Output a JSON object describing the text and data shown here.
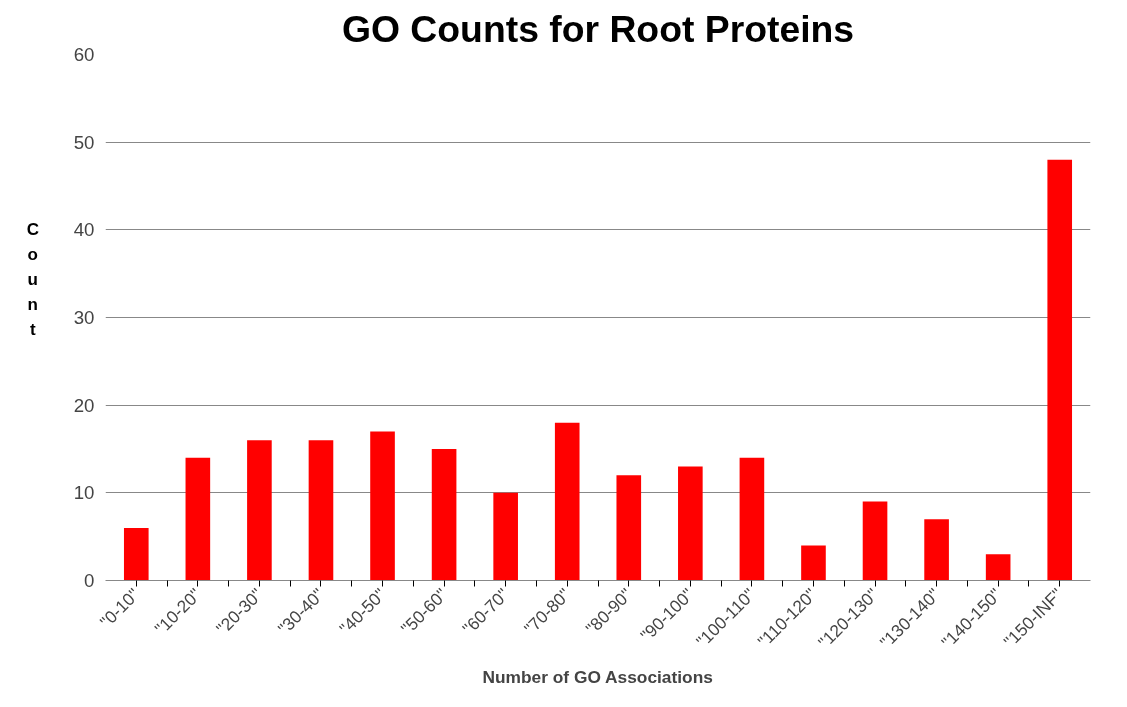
{
  "chart_data": {
    "type": "bar",
    "title": "GO Counts for Root Proteins",
    "xlabel": "Number of GO Associations",
    "ylabel": "Count",
    "categories": [
      "\"0-10\"",
      "\"10-20\"",
      "\"20-30\"",
      "\"30-40\"",
      "\"40-50\"",
      "\"50-60\"",
      "\"60-70\"",
      "\"70-80\"",
      "\"80-90\"",
      "\"90-100\"",
      "\"100-110\"",
      "\"110-120\"",
      "\"120-130\"",
      "\"130-140\"",
      "\"140-150\"",
      "\"150-INF\""
    ],
    "values": [
      6,
      14,
      16,
      16,
      17,
      15,
      10,
      18,
      12,
      13,
      14,
      4,
      9,
      7,
      3,
      48
    ],
    "color": "#ff0000",
    "ylim": [
      0,
      60
    ],
    "yticks": [
      0,
      10,
      20,
      30,
      40,
      50,
      60
    ],
    "grid": "y"
  }
}
